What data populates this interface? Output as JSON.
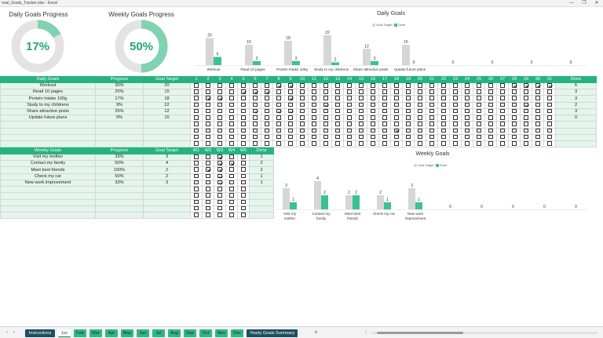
{
  "window": {
    "title": "onal_Goals_Tracker.xlsx - Excel",
    "minimize_glyph": "—",
    "maximize_glyph": "❐",
    "close_glyph": "✕"
  },
  "colors": {
    "accent": "#26b382",
    "goal_bar": "#d6d6d6",
    "done_bar": "#3cc195",
    "donut_fill": "#7fd3b1",
    "donut_track": "#e3e3e3",
    "tab_dark": "#1f4e5f"
  },
  "donuts": [
    {
      "title": "Daily Goals Progress",
      "value_label": "17%",
      "fraction": 0.17
    },
    {
      "title": "Weekly Goals Progress",
      "value_label": "50%",
      "fraction": 0.5
    }
  ],
  "daily_table": {
    "headers": {
      "goals": "Daily Goals",
      "progress": "Progress",
      "target": "Goal Target",
      "done": "Done"
    },
    "days": [
      "1",
      "2",
      "3",
      "4",
      "5",
      "6",
      "7",
      "8",
      "9",
      "10",
      "11",
      "12",
      "13",
      "14",
      "15",
      "16",
      "17",
      "18",
      "19",
      "20",
      "21",
      "22",
      "23",
      "24",
      "25",
      "26",
      "27",
      "28",
      "29",
      "30",
      "31"
    ],
    "rows": [
      {
        "goal": "Workout",
        "progress": "30%",
        "target": "20",
        "done": "6",
        "checked": [
          8,
          9,
          28,
          29,
          30,
          31
        ]
      },
      {
        "goal": "Read 10 pages",
        "progress": "20%",
        "target": "15",
        "done": "3",
        "checked": [
          5,
          6,
          7
        ]
      },
      {
        "goal": "Protein Intake 100g",
        "progress": "17%",
        "target": "18",
        "done": "3",
        "checked": [
          2,
          3,
          9
        ]
      },
      {
        "goal": "Study to my childrens",
        "progress": "9%",
        "target": "22",
        "done": "2",
        "checked": [
          12,
          29
        ]
      },
      {
        "goal": "Share attractive posts",
        "progress": "25%",
        "target": "12",
        "done": "3",
        "checked": [
          6,
          8,
          9
        ]
      },
      {
        "goal": "Update future plans",
        "progress": "0%",
        "target": "15",
        "done": "0",
        "checked": []
      },
      {
        "goal": "",
        "progress": "",
        "target": "",
        "done": "",
        "checked": []
      },
      {
        "goal": "",
        "progress": "",
        "target": "",
        "done": "",
        "checked": [
          18
        ]
      },
      {
        "goal": "",
        "progress": "",
        "target": "",
        "done": "",
        "checked": []
      },
      {
        "goal": "",
        "progress": "",
        "target": "",
        "done": "",
        "checked": []
      }
    ]
  },
  "weekly_table": {
    "headers": {
      "goals": "Weekly Goals",
      "progress": "Progress",
      "target": "Goal Target",
      "done": "Done"
    },
    "weeks": [
      "W1",
      "W2",
      "W3",
      "W4",
      "W5"
    ],
    "rows": [
      {
        "goal": "Visit my mother",
        "progress": "33%",
        "target": "3",
        "done": "1",
        "checked": [
          3
        ]
      },
      {
        "goal": "Contact my family",
        "progress": "50%",
        "target": "4",
        "done": "2",
        "checked": [
          3,
          4
        ]
      },
      {
        "goal": "Meet best friends",
        "progress": "100%",
        "target": "2",
        "done": "2",
        "checked": [
          2,
          3
        ]
      },
      {
        "goal": "Check my car",
        "progress": "50%",
        "target": "2",
        "done": "1",
        "checked": [
          3
        ]
      },
      {
        "goal": "New work improvement",
        "progress": "33%",
        "target": "3",
        "done": "1",
        "checked": [
          3
        ]
      },
      {
        "goal": "",
        "progress": "",
        "target": "",
        "done": "",
        "checked": []
      },
      {
        "goal": "",
        "progress": "",
        "target": "",
        "done": "",
        "checked": []
      },
      {
        "goal": "",
        "progress": "",
        "target": "",
        "done": "",
        "checked": []
      },
      {
        "goal": "",
        "progress": "",
        "target": "",
        "done": "",
        "checked": []
      },
      {
        "goal": "",
        "progress": "",
        "target": "",
        "done": "",
        "checked": []
      }
    ]
  },
  "chart_data": [
    {
      "type": "bar",
      "title": "Daily Goals",
      "legend": [
        "Goal Target",
        "Done"
      ],
      "legend_position": "top",
      "categories": [
        "Workout",
        "Read 10 pages",
        "Protein Intake 100g",
        "Study to my childrens",
        "Share attractive posts",
        "Update future plans",
        "",
        "",
        "",
        ""
      ],
      "series": [
        {
          "name": "Goal Target",
          "values": [
            20,
            15,
            18,
            22,
            12,
            15,
            null,
            null,
            null,
            null
          ]
        },
        {
          "name": "Done",
          "values": [
            6,
            3,
            3,
            2,
            3,
            0,
            0,
            0,
            0,
            0
          ]
        }
      ],
      "ylim": [
        0,
        22
      ]
    },
    {
      "type": "bar",
      "title": "Weekly Goals",
      "legend": [
        "Goal Target",
        "Done"
      ],
      "legend_position": "top",
      "categories": [
        "Visit my mother",
        "Contact my family",
        "Meet best friends",
        "Check my car",
        "New work improvement",
        "",
        "",
        "",
        "",
        ""
      ],
      "series": [
        {
          "name": "Goal Target",
          "values": [
            3,
            4,
            2,
            2,
            3,
            null,
            null,
            null,
            null,
            null
          ]
        },
        {
          "name": "Done",
          "values": [
            1,
            2,
            2,
            1,
            1,
            0,
            0,
            0,
            0,
            0
          ]
        }
      ],
      "ylim": [
        0,
        4
      ]
    }
  ],
  "sheet_tabs": {
    "prev_glyph": "‹",
    "next_glyph": "›",
    "add_glyph": "+",
    "options_glyph": "⋮",
    "tabs": [
      {
        "label": "Instructions",
        "style": "dark"
      },
      {
        "label": "Jan",
        "style": "active"
      },
      {
        "label": "Feb",
        "style": "green"
      },
      {
        "label": "Mar",
        "style": "green"
      },
      {
        "label": "Apr",
        "style": "green"
      },
      {
        "label": "May",
        "style": "green"
      },
      {
        "label": "Jun",
        "style": "green"
      },
      {
        "label": "Jul",
        "style": "green"
      },
      {
        "label": "Aug",
        "style": "green"
      },
      {
        "label": "Sep",
        "style": "green"
      },
      {
        "label": "Oct",
        "style": "green"
      },
      {
        "label": "Nov",
        "style": "green"
      },
      {
        "label": "Dec",
        "style": "green"
      },
      {
        "label": "Yearly Goals Summary",
        "style": "dark"
      }
    ]
  }
}
